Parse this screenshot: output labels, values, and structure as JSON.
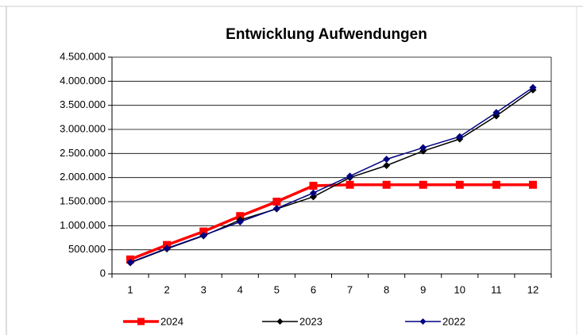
{
  "chart_data": {
    "type": "line",
    "title": "Entwicklung Aufwendungen",
    "categories": [
      "1",
      "2",
      "3",
      "4",
      "5",
      "6",
      "7",
      "8",
      "9",
      "10",
      "11",
      "12"
    ],
    "series": [
      {
        "name": "2024",
        "color": "#ff0000",
        "marker": "square",
        "values": [
          300000,
          600000,
          880000,
          1200000,
          1500000,
          1830000,
          1850000,
          1850000,
          1850000,
          1850000,
          1850000,
          1850000
        ]
      },
      {
        "name": "2023",
        "color": "#000000",
        "marker": "diamond",
        "values": [
          230000,
          520000,
          790000,
          1120000,
          1350000,
          1600000,
          2000000,
          2250000,
          2550000,
          2800000,
          3280000,
          3820000
        ]
      },
      {
        "name": "2022",
        "color": "#000080",
        "marker": "diamond",
        "values": [
          240000,
          530000,
          800000,
          1080000,
          1360000,
          1680000,
          2030000,
          2380000,
          2620000,
          2850000,
          3350000,
          3870000
        ]
      }
    ],
    "ylim": [
      0,
      4500000
    ],
    "yticks": [
      0,
      {
        "value": 500000,
        "label": "500.000"
      },
      {
        "value": 1000000,
        "label": "1.000.000"
      },
      {
        "value": 1500000,
        "label": "1.500.000"
      },
      {
        "value": 2000000,
        "label": "2.000.000"
      },
      {
        "value": 2500000,
        "label": "2.500.000"
      },
      {
        "value": 3000000,
        "label": "3.000.000"
      },
      {
        "value": 3500000,
        "label": "3.500.000"
      },
      {
        "value": 4000000,
        "label": "4.000.000"
      },
      {
        "value": 4500000,
        "label": "4.500.000"
      }
    ],
    "grid": true,
    "legend": "bottom"
  }
}
